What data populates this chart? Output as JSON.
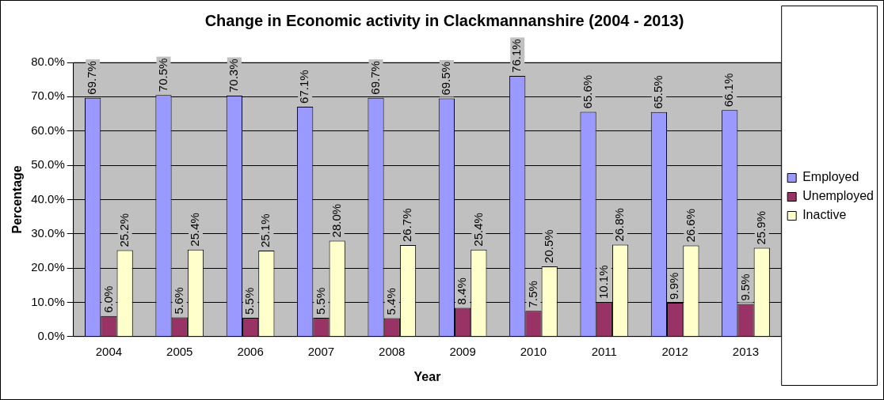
{
  "chart_data": {
    "type": "bar",
    "title": "Change in Economic activity in Clackmannanshire (2004 - 2013)",
    "xlabel": "Year",
    "ylabel": "Percentage",
    "categories": [
      "2004",
      "2005",
      "2006",
      "2007",
      "2008",
      "2009",
      "2010",
      "2011",
      "2012",
      "2013"
    ],
    "series": [
      {
        "name": "Employed",
        "color": "#9999ff",
        "values": [
          69.7,
          70.5,
          70.3,
          67.1,
          69.7,
          69.5,
          76.1,
          65.6,
          65.5,
          66.1
        ],
        "value_labels": [
          "69.7%",
          "70.5%",
          "70.3%",
          "67.1%",
          "69.7%",
          "69.5%",
          "76.1%",
          "65.6%",
          "65.5%",
          "66.1%"
        ]
      },
      {
        "name": "Unemployed",
        "color": "#993366",
        "values": [
          6.0,
          5.6,
          5.5,
          5.5,
          5.4,
          8.4,
          7.5,
          10.1,
          9.9,
          9.5
        ],
        "value_labels": [
          "6.0%",
          "5.6%",
          "5.5%",
          "5.5%",
          "5.4%",
          "8.4%",
          "7.5%",
          "10.1%",
          "9.9%",
          "9.5%"
        ]
      },
      {
        "name": "Inactive",
        "color": "#ffffcc",
        "values": [
          25.2,
          25.4,
          25.1,
          28.0,
          26.7,
          25.4,
          20.5,
          26.8,
          26.6,
          25.9
        ],
        "value_labels": [
          "25.2%",
          "25.4%",
          "25.1%",
          "28.0%",
          "26.7%",
          "25.4%",
          "20.5%",
          "26.8%",
          "26.6%",
          "25.9%"
        ]
      }
    ],
    "ylim": [
      0,
      80
    ],
    "yticks": [
      {
        "value": 0,
        "label": "0.0%"
      },
      {
        "value": 10,
        "label": "10.0%"
      },
      {
        "value": 20,
        "label": "20.0%"
      },
      {
        "value": 30,
        "label": "30.0%"
      },
      {
        "value": 40,
        "label": "40.0%"
      },
      {
        "value": 50,
        "label": "50.0%"
      },
      {
        "value": 60,
        "label": "60.0%"
      },
      {
        "value": 70,
        "label": "70.0%"
      },
      {
        "value": 80,
        "label": "80.0%"
      }
    ],
    "grid": "y",
    "legend": "right"
  }
}
